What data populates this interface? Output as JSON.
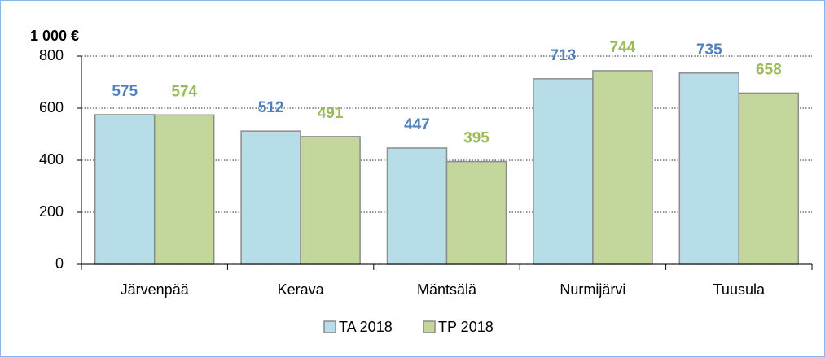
{
  "chart_data": {
    "type": "bar",
    "ylabel": "1 000 €",
    "categories": [
      "Järvenpää",
      "Kerava",
      "Mäntsälä",
      "Nurmijärvi",
      "Tuusula"
    ],
    "series": [
      {
        "name": "TA 2018",
        "color": "#b7dde8",
        "label_color": "#4f81bd",
        "values": [
          575,
          512,
          447,
          713,
          735
        ]
      },
      {
        "name": "TP 2018",
        "color": "#c3d69b",
        "label_color": "#9bbb59",
        "values": [
          574,
          491,
          395,
          744,
          658
        ]
      }
    ],
    "ylim": [
      0,
      800
    ],
    "yticks": [
      0,
      200,
      400,
      600,
      800
    ],
    "grid": true,
    "legend": "bottom"
  }
}
